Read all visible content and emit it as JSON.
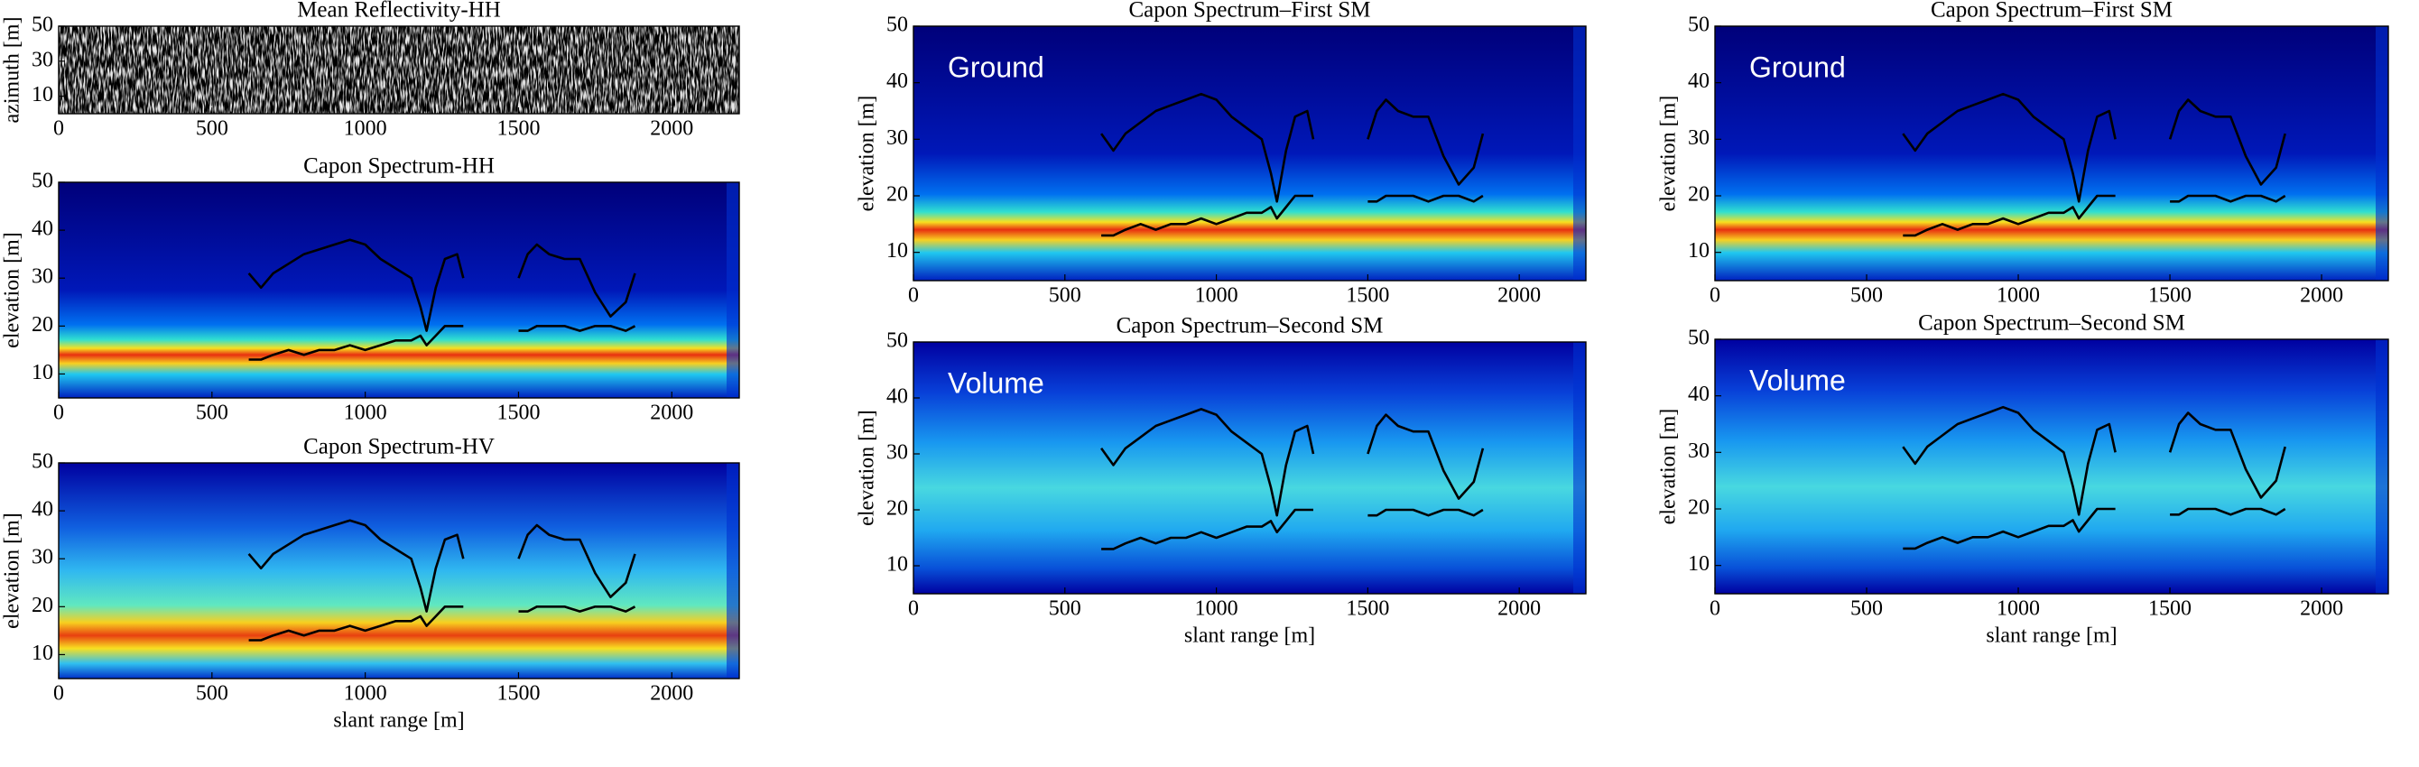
{
  "chart_data": [
    {
      "type": "heatmap",
      "title": "Mean Reflectivity-HH",
      "ylabel": "azimuth [m]",
      "xlim": [
        0,
        2220
      ],
      "xticks": [
        0,
        500,
        1000,
        1500,
        2000
      ],
      "ylim": [
        0,
        50
      ],
      "yticks": [
        10,
        30,
        50
      ]
    },
    {
      "type": "line",
      "title": "Capon Spectrum-HH",
      "ylabel": "elevation [m]",
      "xlim": [
        0,
        2220
      ],
      "xticks": [
        0,
        500,
        1000,
        1500,
        2000
      ],
      "ylim": [
        5,
        50
      ],
      "yticks": [
        10,
        20,
        30,
        40,
        50
      ],
      "x": [
        620,
        660,
        700,
        750,
        800,
        850,
        900,
        950,
        1000,
        1050,
        1100,
        1150,
        1180,
        1200,
        1230,
        1260,
        1300,
        1320,
        1400,
        1500,
        1530,
        1560,
        1600,
        1650,
        1700,
        1750,
        1800,
        1850,
        1880
      ],
      "series": [
        {
          "color": "#000000",
          "values": [
            31,
            28,
            31,
            33,
            35,
            36,
            37,
            38,
            37,
            34,
            32,
            30,
            24,
            19,
            28,
            34,
            35,
            30,
            null,
            30,
            35,
            37,
            35,
            34,
            34,
            27,
            22,
            25,
            31
          ]
        },
        {
          "color": "#000000",
          "values": [
            13,
            13,
            14,
            15,
            14,
            15,
            15,
            16,
            15,
            16,
            17,
            17,
            18,
            16,
            18,
            20,
            20,
            20,
            null,
            19,
            19,
            20,
            20,
            20,
            19,
            20,
            20,
            19,
            20
          ]
        }
      ]
    },
    {
      "type": "line",
      "title": "Capon Spectrum-HV",
      "ylabel": "elevation [m]",
      "xlabel": "slant range [m]",
      "xlim": [
        0,
        2220
      ],
      "xticks": [
        0,
        500,
        1000,
        1500,
        2000
      ],
      "ylim": [
        5,
        50
      ],
      "yticks": [
        10,
        20,
        30,
        40,
        50
      ],
      "x": [
        620,
        660,
        700,
        750,
        800,
        850,
        900,
        950,
        1000,
        1050,
        1100,
        1150,
        1180,
        1200,
        1230,
        1260,
        1300,
        1320,
        1400,
        1500,
        1530,
        1560,
        1600,
        1650,
        1700,
        1750,
        1800,
        1850,
        1880
      ],
      "series": [
        {
          "color": "#000000",
          "values": [
            31,
            28,
            31,
            33,
            35,
            36,
            37,
            38,
            37,
            34,
            32,
            30,
            24,
            19,
            28,
            34,
            35,
            30,
            null,
            30,
            35,
            37,
            35,
            34,
            34,
            27,
            22,
            25,
            31
          ]
        },
        {
          "color": "#000000",
          "values": [
            13,
            13,
            14,
            15,
            14,
            15,
            15,
            16,
            15,
            16,
            17,
            17,
            18,
            16,
            18,
            20,
            20,
            20,
            null,
            19,
            19,
            20,
            20,
            20,
            19,
            20,
            20,
            19,
            20
          ]
        }
      ]
    },
    {
      "type": "line",
      "title": "Capon Spectrum–First SM",
      "ylabel": "elevation [m]",
      "annotation": "Ground",
      "xlim": [
        0,
        2220
      ],
      "xticks": [
        0,
        500,
        1000,
        1500,
        2000
      ],
      "ylim": [
        5,
        50
      ],
      "yticks": [
        10,
        20,
        30,
        40,
        50
      ],
      "x": [
        620,
        660,
        700,
        750,
        800,
        850,
        900,
        950,
        1000,
        1050,
        1100,
        1150,
        1180,
        1200,
        1230,
        1260,
        1300,
        1320,
        1400,
        1500,
        1530,
        1560,
        1600,
        1650,
        1700,
        1750,
        1800,
        1850,
        1880
      ],
      "series": [
        {
          "color": "#000000",
          "values": [
            31,
            28,
            31,
            33,
            35,
            36,
            37,
            38,
            37,
            34,
            32,
            30,
            24,
            19,
            28,
            34,
            35,
            30,
            null,
            30,
            35,
            37,
            35,
            34,
            34,
            27,
            22,
            25,
            31
          ]
        },
        {
          "color": "#000000",
          "values": [
            13,
            13,
            14,
            15,
            14,
            15,
            15,
            16,
            15,
            16,
            17,
            17,
            18,
            16,
            18,
            20,
            20,
            20,
            null,
            19,
            19,
            20,
            20,
            20,
            19,
            20,
            20,
            19,
            20
          ]
        }
      ]
    },
    {
      "type": "line",
      "title": "Capon Spectrum–Second SM",
      "ylabel": "elevation [m]",
      "xlabel": "slant range [m]",
      "annotation": "Volume",
      "xlim": [
        0,
        2220
      ],
      "xticks": [
        0,
        500,
        1000,
        1500,
        2000
      ],
      "ylim": [
        5,
        50
      ],
      "yticks": [
        10,
        20,
        30,
        40,
        50
      ],
      "x": [
        620,
        660,
        700,
        750,
        800,
        850,
        900,
        950,
        1000,
        1050,
        1100,
        1150,
        1180,
        1200,
        1230,
        1260,
        1300,
        1320,
        1400,
        1500,
        1530,
        1560,
        1600,
        1650,
        1700,
        1750,
        1800,
        1850,
        1880
      ],
      "series": [
        {
          "color": "#000000",
          "values": [
            31,
            28,
            31,
            33,
            35,
            36,
            37,
            38,
            37,
            34,
            32,
            30,
            24,
            19,
            28,
            34,
            35,
            30,
            null,
            30,
            35,
            37,
            35,
            34,
            34,
            27,
            22,
            25,
            31
          ]
        },
        {
          "color": "#000000",
          "values": [
            13,
            13,
            14,
            15,
            14,
            15,
            15,
            16,
            15,
            16,
            17,
            17,
            18,
            16,
            18,
            20,
            20,
            20,
            null,
            19,
            19,
            20,
            20,
            20,
            19,
            20,
            20,
            19,
            20
          ]
        }
      ]
    },
    {
      "type": "line",
      "title": "Capon Spectrum–First SM",
      "ylabel": "elevation [m]",
      "annotation": "Ground",
      "xlim": [
        0,
        2220
      ],
      "xticks": [
        0,
        500,
        1000,
        1500,
        2000
      ],
      "ylim": [
        5,
        50
      ],
      "yticks": [
        10,
        20,
        30,
        40,
        50
      ],
      "x": [
        620,
        660,
        700,
        750,
        800,
        850,
        900,
        950,
        1000,
        1050,
        1100,
        1150,
        1180,
        1200,
        1230,
        1260,
        1300,
        1320,
        1400,
        1500,
        1530,
        1560,
        1600,
        1650,
        1700,
        1750,
        1800,
        1850,
        1880
      ],
      "series": [
        {
          "color": "#000000",
          "values": [
            31,
            28,
            31,
            33,
            35,
            36,
            37,
            38,
            37,
            34,
            32,
            30,
            24,
            19,
            28,
            34,
            35,
            30,
            null,
            30,
            35,
            37,
            35,
            34,
            34,
            27,
            22,
            25,
            31
          ]
        },
        {
          "color": "#000000",
          "values": [
            13,
            13,
            14,
            15,
            14,
            15,
            15,
            16,
            15,
            16,
            17,
            17,
            18,
            16,
            18,
            20,
            20,
            20,
            null,
            19,
            19,
            20,
            20,
            20,
            19,
            20,
            20,
            19,
            20
          ]
        }
      ]
    },
    {
      "type": "line",
      "title": "Capon Spectrum–Second SM",
      "ylabel": "elevation [m]",
      "xlabel": "slant range [m]",
      "annotation": "Volume",
      "xlim": [
        0,
        2220
      ],
      "xticks": [
        0,
        500,
        1000,
        1500,
        2000
      ],
      "ylim": [
        5,
        50
      ],
      "yticks": [
        10,
        20,
        30,
        40,
        50
      ],
      "x": [
        620,
        660,
        700,
        750,
        800,
        850,
        900,
        950,
        1000,
        1050,
        1100,
        1150,
        1180,
        1200,
        1230,
        1260,
        1300,
        1320,
        1400,
        1500,
        1530,
        1560,
        1600,
        1650,
        1700,
        1750,
        1800,
        1850,
        1880
      ],
      "series": [
        {
          "color": "#000000",
          "values": [
            31,
            28,
            31,
            33,
            35,
            36,
            37,
            38,
            37,
            34,
            32,
            30,
            24,
            19,
            28,
            34,
            35,
            30,
            null,
            30,
            35,
            37,
            35,
            34,
            34,
            27,
            22,
            25,
            31
          ]
        },
        {
          "color": "#000000",
          "values": [
            13,
            13,
            14,
            15,
            14,
            15,
            15,
            16,
            15,
            16,
            17,
            17,
            18,
            16,
            18,
            20,
            20,
            20,
            null,
            19,
            19,
            20,
            20,
            20,
            19,
            20,
            20,
            19,
            20
          ]
        }
      ]
    }
  ]
}
